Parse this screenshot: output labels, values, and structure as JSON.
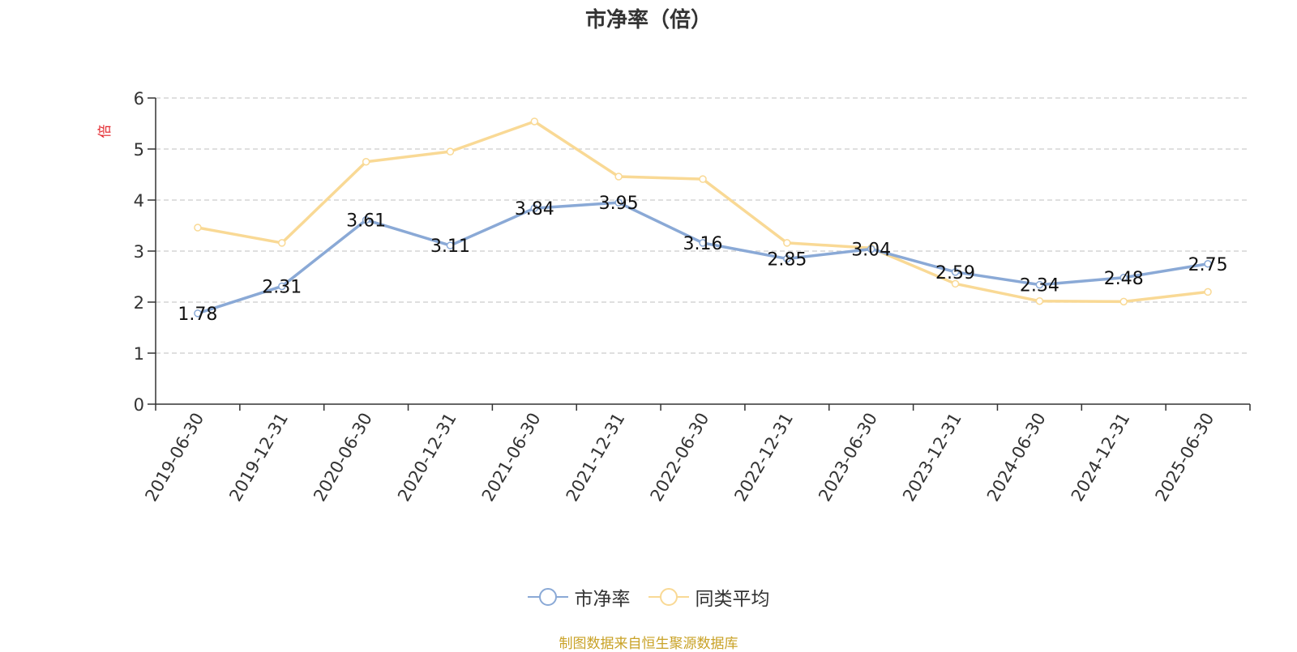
{
  "chart_data": {
    "type": "line",
    "title": "市净率（倍）",
    "ylabel": "倍",
    "xlabel": "",
    "ylim": [
      0,
      6
    ],
    "yticks": [
      0,
      1,
      2,
      3,
      4,
      5,
      6
    ],
    "grid": true,
    "legend_position": "bottom-center",
    "categories": [
      "2019-06-30",
      "2019-12-31",
      "2020-06-30",
      "2020-12-31",
      "2021-06-30",
      "2021-12-31",
      "2022-06-30",
      "2022-12-31",
      "2023-06-30",
      "2023-12-31",
      "2024-06-30",
      "2024-12-31",
      "2025-06-30"
    ],
    "series": [
      {
        "name": "市净率",
        "color": "#8aa9d6",
        "show_labels": true,
        "values": [
          1.78,
          2.31,
          3.61,
          3.11,
          3.84,
          3.95,
          3.16,
          2.85,
          3.04,
          2.59,
          2.34,
          2.48,
          2.75
        ]
      },
      {
        "name": "同类平均",
        "color": "#f9d995",
        "show_labels": false,
        "values": [
          3.46,
          3.16,
          4.75,
          4.95,
          5.54,
          4.46,
          4.41,
          3.16,
          3.06,
          2.36,
          2.02,
          2.01,
          2.2
        ]
      }
    ]
  },
  "source_note": "制图数据来自恒生聚源数据库"
}
